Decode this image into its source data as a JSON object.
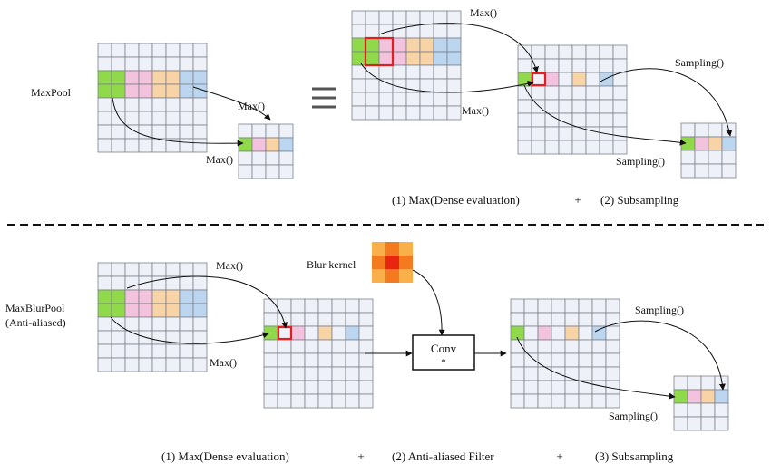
{
  "labels": {
    "maxpool": "MaxPool",
    "maxblurpool_line1": "MaxBlurPool",
    "maxblurpool_line2": "(Anti-aliased)",
    "blur_kernel": "Blur kernel",
    "conv": "Conv",
    "conv_sub": "*"
  },
  "ops": {
    "max": "Max()",
    "sampling": "Sampling()",
    "equivalent": "≡"
  },
  "captions": {
    "top": {
      "step1": "(1) Max(Dense evaluation)",
      "plus1": "+",
      "step2": "(2) Subsampling"
    },
    "bottom": {
      "step1": "(1) Max(Dense evaluation)",
      "plus1": "+",
      "step2": "(2) Anti-aliased Filter",
      "plus2": "+",
      "step3": "(3) Subsampling"
    }
  },
  "colors": {
    "cell_bg": "#eef2f8",
    "grid_line": "#7a7f8a",
    "green": "#8fd94a",
    "pink": "#f3c2dc",
    "orange": "#f7d3a5",
    "blue": "#bcd6f0",
    "highlight": "#e02020",
    "kernel_center": "#e8260f",
    "kernel_inner": "#f47a20",
    "kernel_outer": "#f9b04a",
    "text": "#111111"
  },
  "icons": {
    "arrow": "arrow-icon",
    "equivalent": "equivalence-icon"
  }
}
